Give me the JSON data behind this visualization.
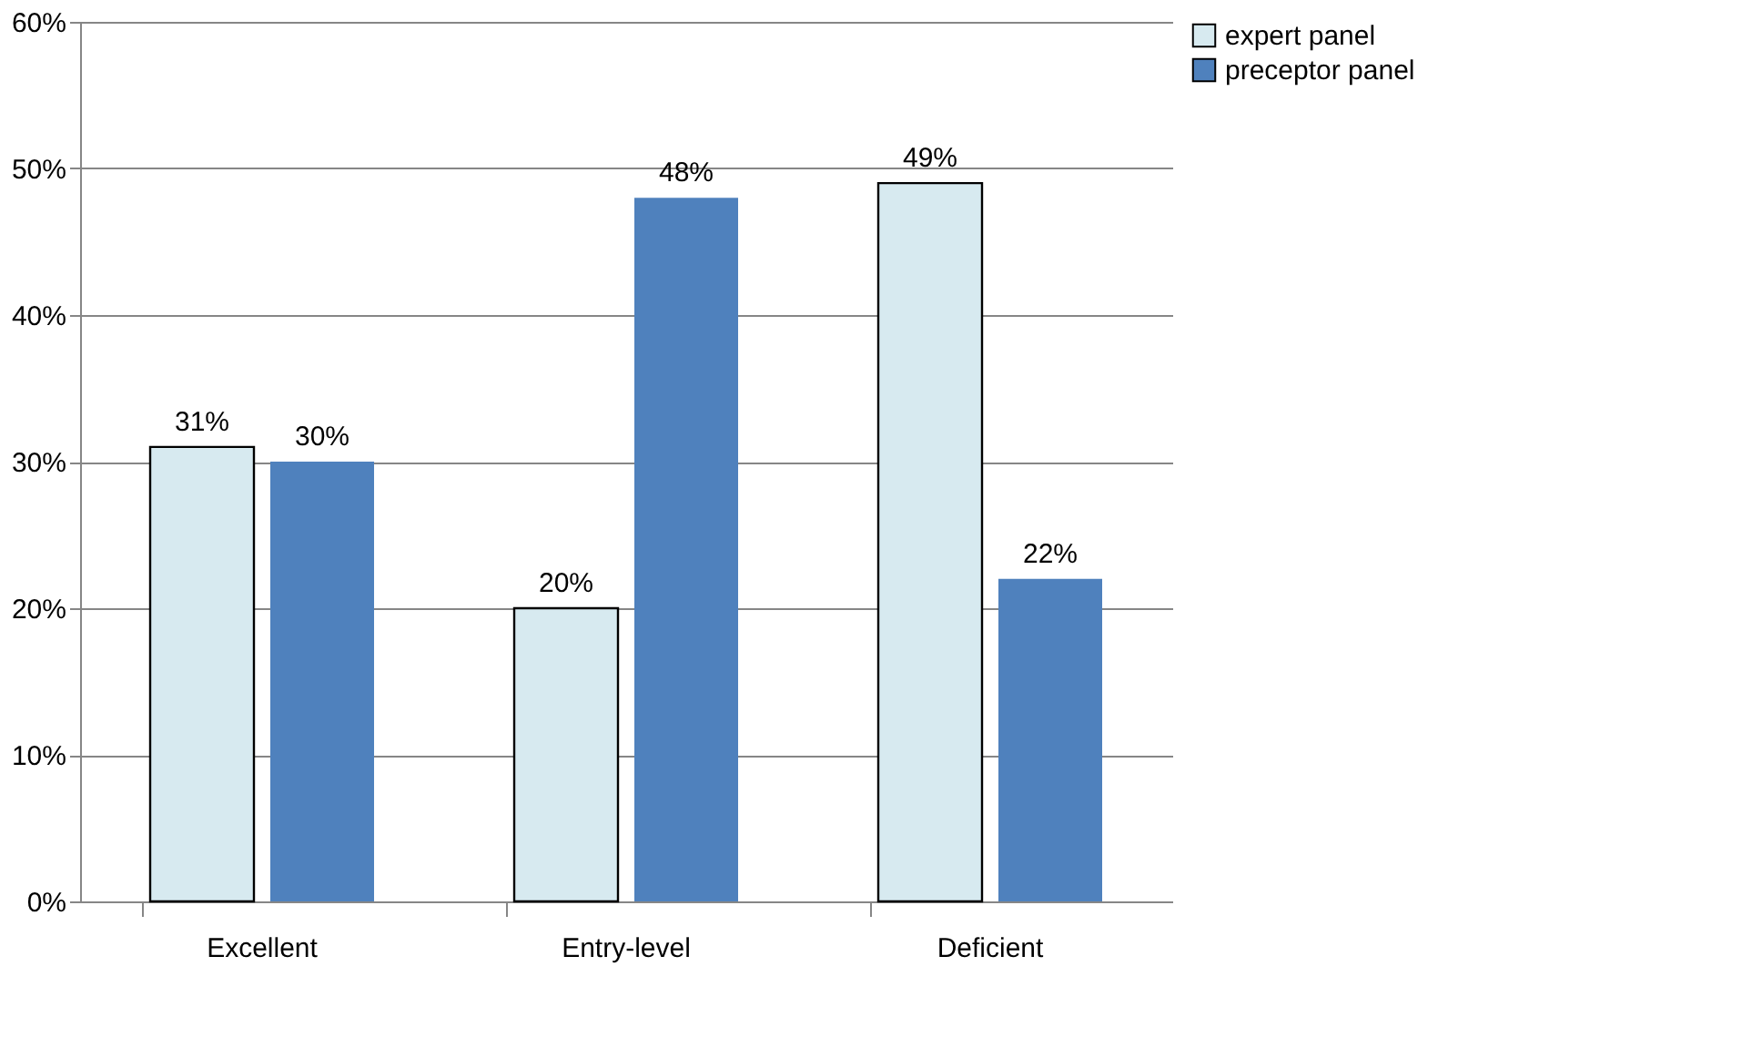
{
  "chart_data": {
    "type": "bar",
    "categories": [
      "Excellent",
      "Entry-level",
      "Deficient"
    ],
    "series": [
      {
        "name": "expert panel",
        "color": "#d7eaf0",
        "values": [
          31,
          20,
          49
        ],
        "value_labels": [
          "31%",
          "20%",
          "49%"
        ]
      },
      {
        "name": "preceptor panel",
        "color": "#4f81bd",
        "values": [
          30,
          48,
          22
        ],
        "value_labels": [
          "30%",
          "48%",
          "22%"
        ]
      }
    ],
    "ylim": [
      0,
      60
    ],
    "yticks": [
      {
        "value": 0,
        "label": "0%"
      },
      {
        "value": 10,
        "label": "10%"
      },
      {
        "value": 20,
        "label": "20%"
      },
      {
        "value": 30,
        "label": "30%"
      },
      {
        "value": 40,
        "label": "40%"
      },
      {
        "value": 50,
        "label": "50%"
      },
      {
        "value": 60,
        "label": "60%"
      }
    ],
    "grid": "y",
    "legend": "right"
  }
}
